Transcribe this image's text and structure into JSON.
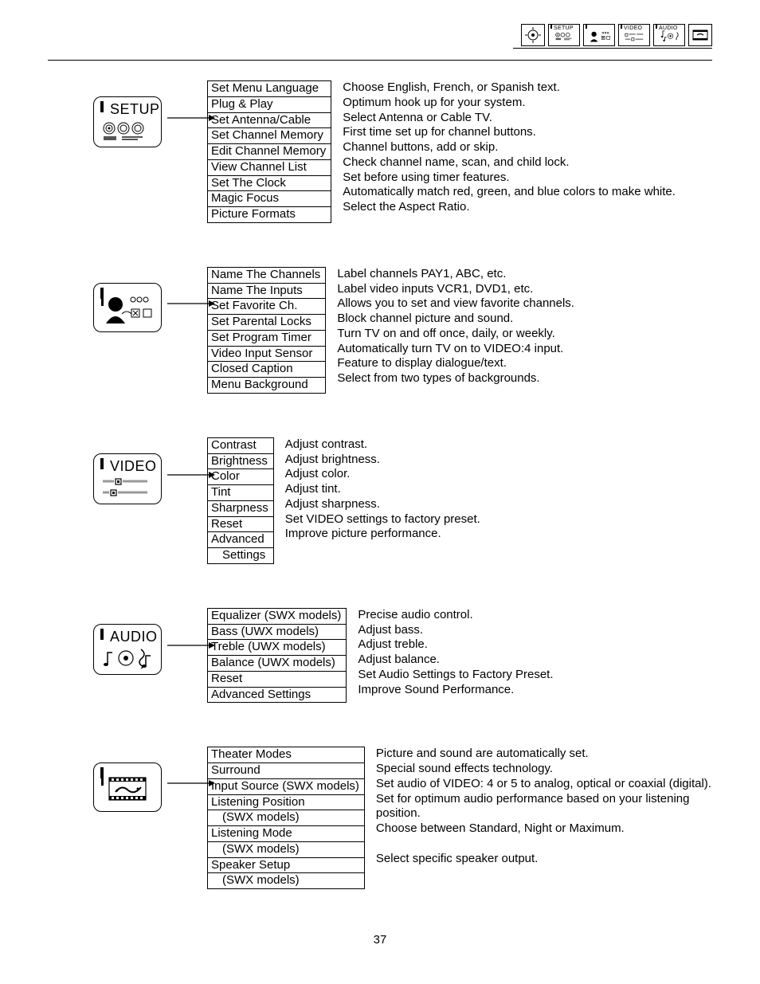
{
  "header_tabs": [
    "SETUP",
    "",
    "VIDEO",
    "AUDIO",
    ""
  ],
  "page_number": "37",
  "sections": [
    {
      "icon_title": "SETUP",
      "icon_type": "setup",
      "menu": [
        {
          "label": "Set Menu Language",
          "desc": "Choose English, French, or Spanish text."
        },
        {
          "label": "Plug & Play",
          "desc": "Optimum hook up for your system."
        },
        {
          "label": "Set Antenna/Cable",
          "desc": "Select Antenna or Cable TV."
        },
        {
          "label": "Set Channel Memory",
          "desc": "First time set up for channel buttons."
        },
        {
          "label": "Edit Channel Memory",
          "desc": "Channel buttons, add or skip."
        },
        {
          "label": "View Channel List",
          "desc": "Check channel name, scan, and child lock."
        },
        {
          "label": "Set The Clock",
          "desc": "Set before using timer features."
        },
        {
          "label": "Magic Focus",
          "desc": "Automatically match red, green, and blue colors to make white."
        },
        {
          "label": "Picture Formats",
          "desc": "Select  the Aspect Ratio."
        }
      ]
    },
    {
      "icon_title": "",
      "icon_type": "user",
      "menu": [
        {
          "label": "Name The Channels",
          "desc": "Label channels PAY1, ABC, etc."
        },
        {
          "label": "Name The Inputs",
          "desc": "Label video inputs VCR1, DVD1, etc."
        },
        {
          "label": "Set Favorite Ch.",
          "desc": "Allows you to set and view favorite channels."
        },
        {
          "label": "Set Parental Locks",
          "desc": "Block channel picture and sound."
        },
        {
          "label": "Set Program Timer",
          "desc": "Turn TV on and off once, daily, or weekly."
        },
        {
          "label": "Video Input Sensor",
          "desc": "Automatically turn TV on to VIDEO:4 input."
        },
        {
          "label": "Closed Caption",
          "desc": "Feature to display dialogue/text."
        },
        {
          "label": "Menu Background",
          "desc": "Select from two types of backgrounds."
        }
      ]
    },
    {
      "icon_title": "VIDEO",
      "icon_type": "video",
      "menu": [
        {
          "label": "Contrast",
          "desc": "Adjust contrast."
        },
        {
          "label": "Brightness",
          "desc": "Adjust brightness."
        },
        {
          "label": "Color",
          "desc": "Adjust color."
        },
        {
          "label": "Tint",
          "desc": "Adjust tint."
        },
        {
          "label": "Sharpness",
          "desc": "Adjust sharpness."
        },
        {
          "label": "Reset",
          "desc": "Set VIDEO settings to factory preset."
        },
        {
          "label": "Advanced",
          "desc": "Improve picture performance."
        },
        {
          "label": "   Settings",
          "desc": "",
          "cont": true
        }
      ]
    },
    {
      "icon_title": "AUDIO",
      "icon_type": "audio",
      "menu": [
        {
          "label": "Equalizer (SWX models)",
          "desc": "Precise audio control."
        },
        {
          "label": "Bass (UWX models)",
          "desc": "Adjust bass."
        },
        {
          "label": "Treble (UWX models)",
          "desc": "Adjust treble."
        },
        {
          "label": "Balance (UWX models)",
          "desc": "Adjust balance."
        },
        {
          "label": "Reset",
          "desc": "Set Audio Settings to Factory Preset."
        },
        {
          "label": "Advanced Settings",
          "desc": "Improve Sound Performance."
        }
      ]
    },
    {
      "icon_title": "",
      "icon_type": "film",
      "menu": [
        {
          "label": "Theater Modes",
          "desc": "Picture and sound are automatically set."
        },
        {
          "label": "Surround",
          "desc": "Special sound effects technology."
        },
        {
          "label": "Input Source (SWX models)",
          "desc": "Set audio of VIDEO: 4 or 5 to analog, optical or coaxial (digital)."
        },
        {
          "label": "Listening Position",
          "desc": "Set for optimum audio performance based on your listening"
        },
        {
          "label": "    (SWX models)",
          "desc": "position.",
          "cont": true
        },
        {
          "label": "Listening Mode",
          "desc": "Choose between Standard, Night or Maximum."
        },
        {
          "label": "    (SWX models)",
          "desc": "",
          "cont": true
        },
        {
          "label": "Speaker Setup",
          "desc": "Select specific speaker output."
        },
        {
          "label": "    (SWX models)",
          "desc": "",
          "cont": true
        }
      ]
    }
  ]
}
